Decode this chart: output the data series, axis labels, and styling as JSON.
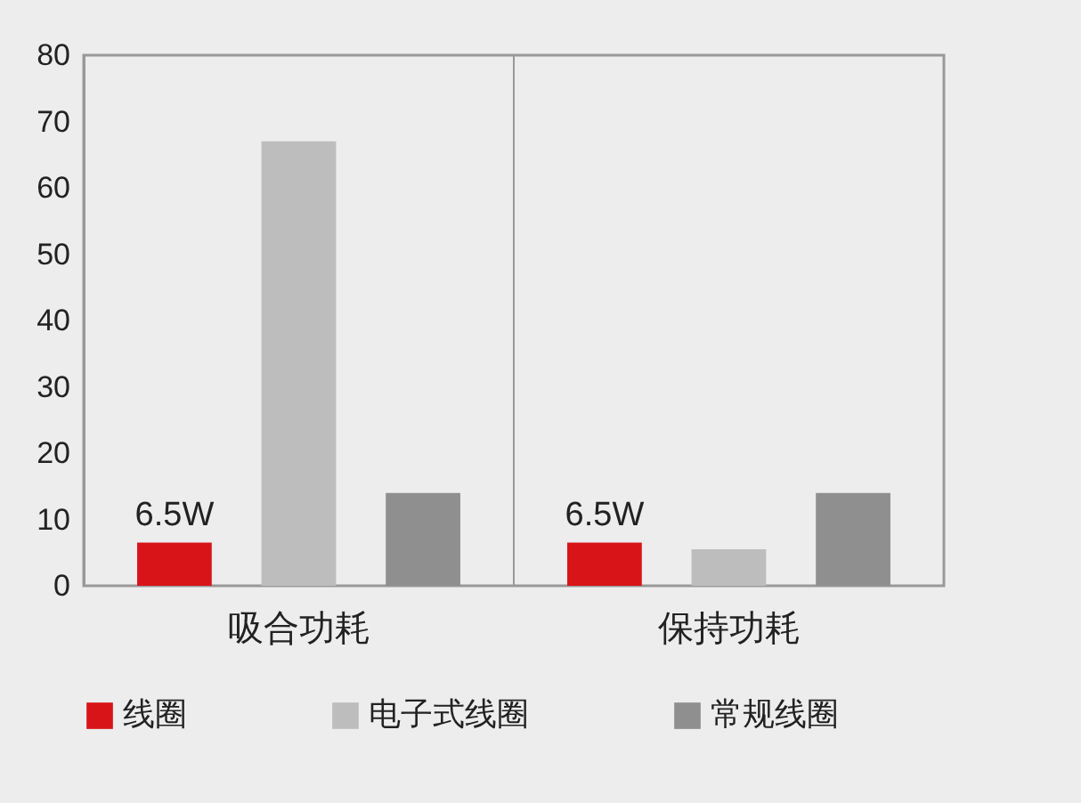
{
  "chart_data": {
    "type": "bar",
    "categories": [
      "吸合功耗",
      "保持功耗"
    ],
    "series": [
      {
        "name": "线圈",
        "color": "#d81418",
        "values": [
          6.5,
          6.5
        ],
        "value_labels": [
          "6.5W",
          "6.5W"
        ]
      },
      {
        "name": "电子式线圈",
        "color": "#bdbdbd",
        "values": [
          67,
          5.5
        ]
      },
      {
        "name": "常规线圈",
        "color": "#8f8f8f",
        "values": [
          14,
          14
        ]
      }
    ],
    "ylim": [
      0,
      80
    ],
    "yticks": [
      0,
      10,
      20,
      30,
      40,
      50,
      60,
      70,
      80
    ],
    "grid": "x",
    "legend": "bottom"
  }
}
